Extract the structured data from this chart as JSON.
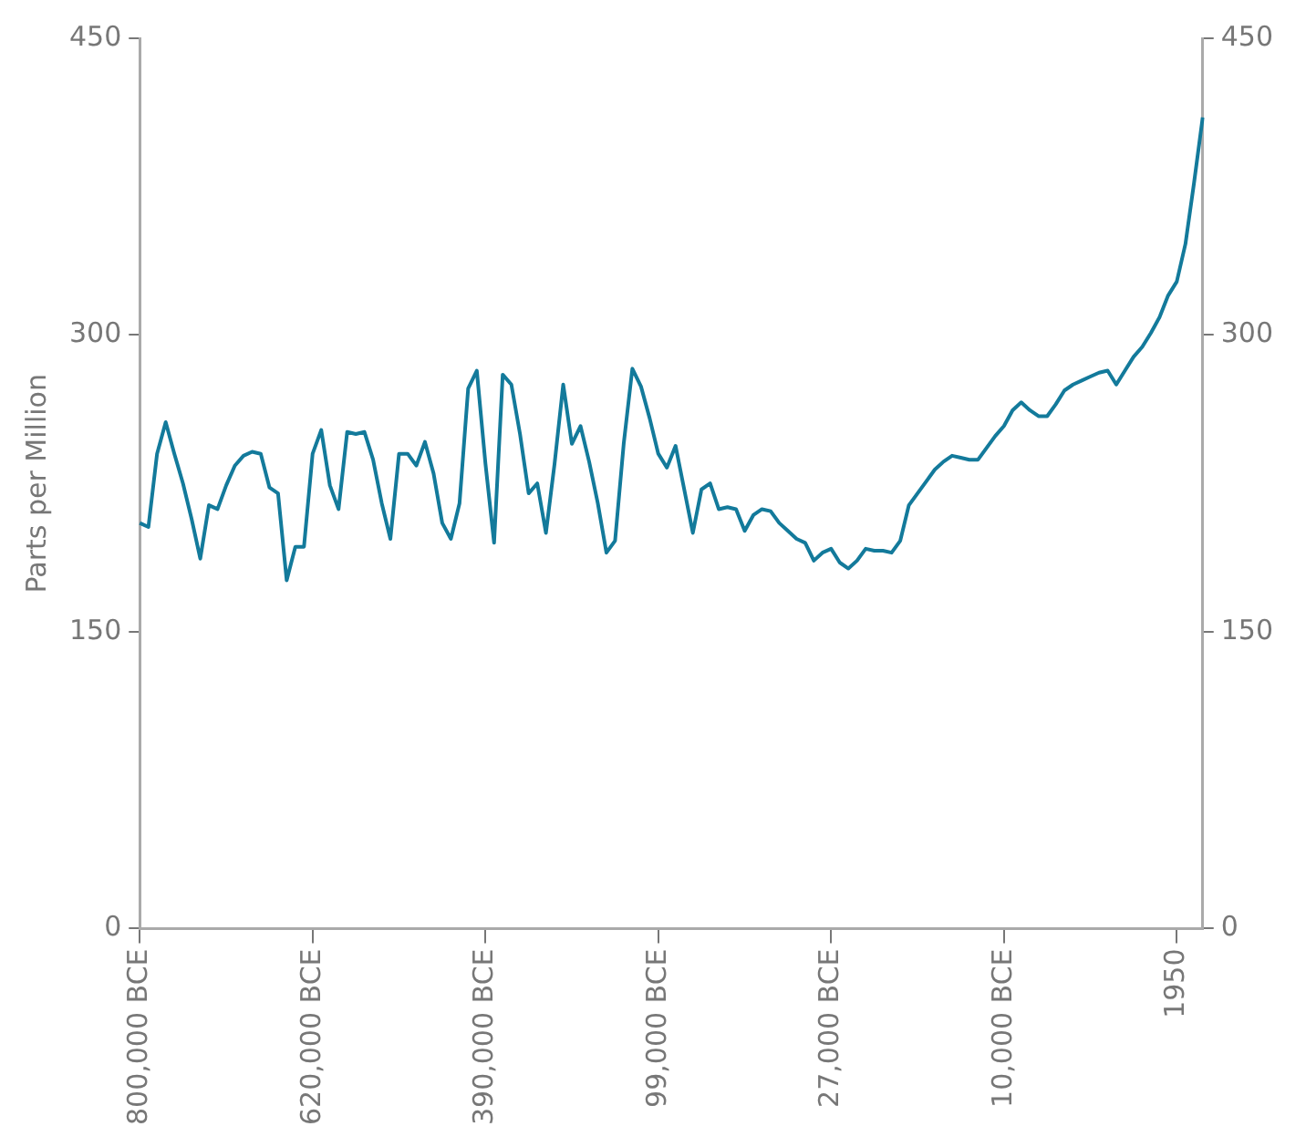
{
  "chart_data": {
    "type": "line",
    "ylabel": "Parts per Million",
    "categories": [
      "800,000 BCE",
      null,
      null,
      null,
      null,
      null,
      null,
      null,
      null,
      null,
      null,
      null,
      null,
      null,
      null,
      null,
      null,
      null,
      null,
      null,
      "620,000 BCE",
      null,
      null,
      null,
      null,
      null,
      null,
      null,
      null,
      null,
      null,
      null,
      null,
      null,
      null,
      null,
      null,
      null,
      null,
      null,
      "390,000 BCE",
      null,
      null,
      null,
      null,
      null,
      null,
      null,
      null,
      null,
      null,
      null,
      null,
      null,
      null,
      null,
      null,
      null,
      null,
      null,
      "99,000 BCE",
      null,
      null,
      null,
      null,
      null,
      null,
      null,
      null,
      null,
      null,
      null,
      null,
      null,
      null,
      null,
      null,
      null,
      null,
      null,
      "27,000 BCE",
      null,
      null,
      null,
      null,
      null,
      null,
      null,
      null,
      null,
      null,
      null,
      null,
      null,
      null,
      null,
      null,
      null,
      null,
      null,
      "10,000 BCE",
      null,
      null,
      null,
      null,
      null,
      null,
      null,
      null,
      null,
      null,
      null,
      null,
      null,
      null,
      null,
      null,
      null,
      null,
      null,
      "1950",
      null,
      null,
      null
    ],
    "series": [
      {
        "color": "#137a9b",
        "values": [
          205,
          203,
          240,
          256,
          240,
          225,
          207,
          187,
          214,
          212,
          224,
          234,
          239,
          241,
          240,
          223,
          220,
          176,
          193,
          193,
          240,
          252,
          224,
          212,
          251,
          250,
          251,
          237,
          215,
          197,
          240,
          240,
          234,
          246,
          230,
          205,
          197,
          215,
          273,
          282,
          235,
          195,
          280,
          275,
          250,
          220,
          225,
          200,
          235,
          275,
          245,
          254,
          236,
          215,
          190,
          196,
          245,
          283,
          274,
          258,
          240,
          233,
          244,
          222,
          200,
          222,
          225,
          212,
          213,
          212,
          201,
          209,
          212,
          211,
          205,
          201,
          197,
          195,
          186,
          190,
          192,
          185,
          182,
          186,
          192,
          191,
          191,
          190,
          196,
          214,
          220,
          226,
          232,
          236,
          239,
          238,
          237,
          237,
          243,
          249,
          254,
          262,
          266,
          262,
          259,
          259,
          265,
          272,
          275,
          277,
          279,
          281,
          282,
          275,
          282,
          289,
          294,
          301,
          309,
          320,
          327,
          346,
          377,
          410
        ]
      }
    ],
    "ylim": [
      0,
      450
    ],
    "yticks": [
      0,
      150,
      300,
      450
    ],
    "y2lim": [
      0,
      450
    ],
    "y2ticks": [
      0,
      150,
      300,
      450
    ],
    "grid": false,
    "legend": false,
    "marker": "none",
    "line_style": "solid"
  }
}
